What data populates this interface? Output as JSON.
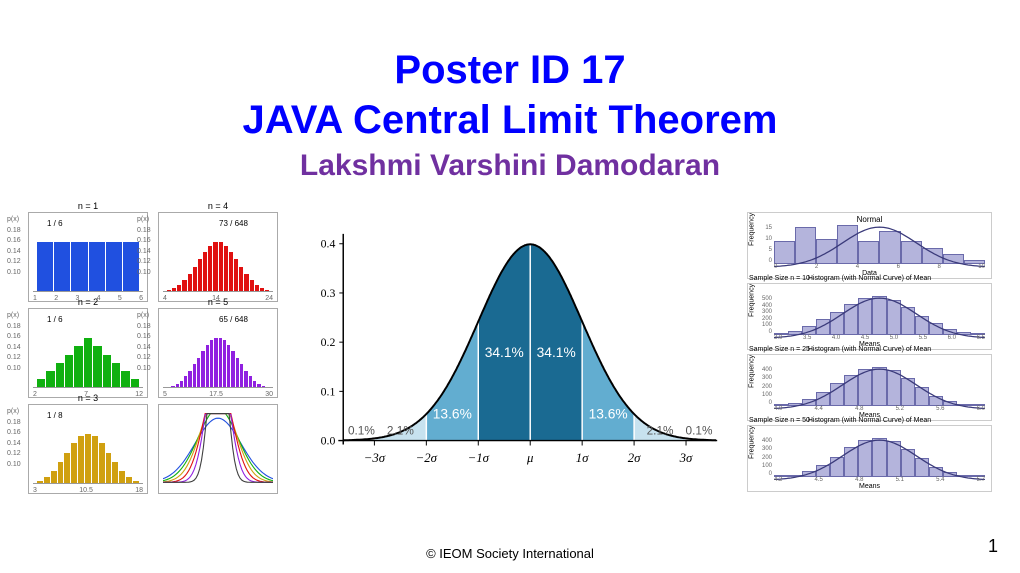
{
  "title": {
    "line1": "Poster ID 17",
    "line2": "JAVA Central Limit Theorem",
    "title_color": "#0000ff",
    "title_fontsize": 40
  },
  "author": {
    "name": "Lakshmi Varshini Damodaran",
    "color": "#7030a0",
    "fontsize": 30
  },
  "footer": {
    "copyright": "© IEOM Society International",
    "page_number": "1"
  },
  "panel_left": {
    "grid": "3x2",
    "axis_color": "#999999",
    "label_color": "#666666",
    "plots": [
      {
        "id": "n1",
        "title": "n = 1",
        "peak_label": "1 / 6",
        "peak_x": 18,
        "color": "#2050e0",
        "bars": [
          100,
          100,
          100,
          100,
          100,
          100
        ],
        "y_ticks": [
          "0.18",
          "0.16",
          "0.14",
          "0.12",
          "0.10",
          "0.08",
          "0.06",
          "0.04",
          "0.02",
          "0.00"
        ],
        "x_ticks": [
          "1",
          "2",
          "3",
          "4",
          "5",
          "6"
        ]
      },
      {
        "id": "n4",
        "title": "n = 4",
        "peak_label": "73 / 648",
        "peak_x": 60,
        "color": "#e01010",
        "bars": [
          2,
          6,
          12,
          22,
          35,
          50,
          65,
          80,
          92,
          100,
          100,
          92,
          80,
          65,
          50,
          35,
          22,
          12,
          6,
          2
        ],
        "y_ticks": [
          "0.18",
          "0.16",
          "0.14",
          "0.12",
          "0.10",
          "0.08",
          "0.06",
          "0.04",
          "0.02",
          "0.00"
        ],
        "x_ticks": [
          "4",
          "14",
          "24"
        ]
      },
      {
        "id": "n2",
        "title": "n = 2",
        "peak_label": "1 / 6",
        "peak_x": 18,
        "color": "#10b010",
        "bars": [
          16,
          33,
          50,
          66,
          83,
          100,
          83,
          66,
          50,
          33,
          16
        ],
        "y_ticks": [
          "0.18",
          "0.16",
          "0.14",
          "0.12",
          "0.10",
          "0.08",
          "0.06",
          "0.04",
          "0.02",
          "0.00"
        ],
        "x_ticks": [
          "2",
          "7",
          "12"
        ]
      },
      {
        "id": "n5",
        "title": "n = 5",
        "peak_label": "65 / 648",
        "peak_x": 60,
        "color": "#9020e0",
        "bars": [
          1,
          3,
          7,
          13,
          22,
          33,
          46,
          60,
          74,
          86,
          95,
          100,
          100,
          95,
          86,
          74,
          60,
          46,
          33,
          22,
          13,
          7,
          3,
          1
        ],
        "y_ticks": [
          "0.18",
          "0.16",
          "0.14",
          "0.12",
          "0.10",
          "0.08",
          "0.06",
          "0.04",
          "0.02",
          "0.00"
        ],
        "x_ticks": [
          "5",
          "17.5",
          "30"
        ]
      },
      {
        "id": "n3",
        "title": "n = 3",
        "peak_label": "1 / 8",
        "peak_x": 18,
        "color": "#d0a010",
        "bars": [
          4,
          12,
          25,
          42,
          62,
          82,
          96,
          100,
          96,
          82,
          62,
          42,
          25,
          12,
          4
        ],
        "y_ticks": [
          "0.18",
          "0.16",
          "0.14",
          "0.12",
          "0.10",
          "0.08",
          "0.06",
          "0.04",
          "0.02",
          "0.00"
        ],
        "x_ticks": [
          "3",
          "10.5",
          "18"
        ]
      }
    ],
    "overlay": {
      "id": "overlay",
      "curves": [
        "#2050e0",
        "#10b010",
        "#d0a010",
        "#e01010",
        "#9020e0",
        "#404040"
      ],
      "line_width": 1.2
    }
  },
  "panel_center": {
    "type": "normal_distribution",
    "background": "#ffffff",
    "axis_color": "#000000",
    "line_color": "#000000",
    "line_width": 2,
    "regions": [
      {
        "label": "0.1%",
        "from": -3.5,
        "to": -3,
        "fill": "#eaf4f9",
        "text_color": "#666666"
      },
      {
        "label": "2.1%",
        "from": -3,
        "to": -2,
        "fill": "#c7e2ef",
        "text_color": "#666666"
      },
      {
        "label": "13.6%",
        "from": -2,
        "to": -1,
        "fill": "#62add0",
        "text_color": "#ffffff"
      },
      {
        "label": "34.1%",
        "from": -1,
        "to": 0,
        "fill": "#1a6a92",
        "text_color": "#ffffff"
      },
      {
        "label": "34.1%",
        "from": 0,
        "to": 1,
        "fill": "#1a6a92",
        "text_color": "#ffffff"
      },
      {
        "label": "13.6%",
        "from": 1,
        "to": 2,
        "fill": "#62add0",
        "text_color": "#ffffff"
      },
      {
        "label": "2.1%",
        "from": 2,
        "to": 3,
        "fill": "#c7e2ef",
        "text_color": "#666666"
      },
      {
        "label": "0.1%",
        "from": 3,
        "to": 3.5,
        "fill": "#eaf4f9",
        "text_color": "#666666"
      }
    ],
    "x_ticks": [
      "−3σ",
      "−2σ",
      "−1σ",
      "μ",
      "1σ",
      "2σ",
      "3σ"
    ],
    "y_ticks": [
      "0.0",
      "0.1",
      "0.2",
      "0.3",
      "0.4"
    ]
  },
  "panel_right": {
    "bar_fill": "#b4b4dc",
    "bar_border": "#6a6aaa",
    "curve_color": "#3a3a7a",
    "curve_width": 1.2,
    "plots": [
      {
        "title_top": "Normal",
        "sample_label": "",
        "hist_label": "",
        "ylabel": "Frequency",
        "xlabel": "Data",
        "bars": [
          60,
          95,
          65,
          100,
          60,
          85,
          60,
          40,
          25,
          10
        ],
        "x_ticks": [
          "0",
          "2",
          "4",
          "6",
          "8",
          "10"
        ],
        "y_ticks": [
          "15",
          "10",
          "5",
          "0"
        ]
      },
      {
        "title_top": "",
        "sample_label": "Sample Size n = 10",
        "hist_label": "Histogram (with Normal Curve) of Mean",
        "ylabel": "Frequency",
        "xlabel": "Means",
        "bars": [
          5,
          10,
          22,
          40,
          60,
          80,
          95,
          100,
          90,
          72,
          50,
          30,
          16,
          8,
          3
        ],
        "x_ticks": [
          "3.0",
          "3.5",
          "4.0",
          "4.5",
          "5.0",
          "5.5",
          "6.0",
          "6.5"
        ],
        "y_ticks": [
          "500",
          "400",
          "300",
          "200",
          "100",
          "0"
        ]
      },
      {
        "title_top": "",
        "sample_label": "Sample Size n = 25",
        "hist_label": "Histogram (with Normal Curve) of Mean",
        "ylabel": "Frequency",
        "xlabel": "Means",
        "bars": [
          3,
          8,
          18,
          35,
          58,
          80,
          96,
          100,
          92,
          72,
          48,
          26,
          12,
          5,
          2
        ],
        "x_ticks": [
          "4.0",
          "4.4",
          "4.8",
          "5.2",
          "5.6",
          "6.0"
        ],
        "y_ticks": [
          "400",
          "300",
          "200",
          "100",
          "0"
        ]
      },
      {
        "title_top": "",
        "sample_label": "Sample Size n = 50",
        "hist_label": "Histogram (with Normal Curve) of Mean",
        "ylabel": "Frequency",
        "xlabel": "Means",
        "bars": [
          2,
          6,
          15,
          30,
          52,
          76,
          94,
          100,
          92,
          72,
          48,
          26,
          12,
          5,
          2
        ],
        "x_ticks": [
          "4.2",
          "4.5",
          "4.8",
          "5.1",
          "5.4",
          "5.7"
        ],
        "y_ticks": [
          "400",
          "300",
          "200",
          "100",
          "0"
        ]
      }
    ]
  }
}
